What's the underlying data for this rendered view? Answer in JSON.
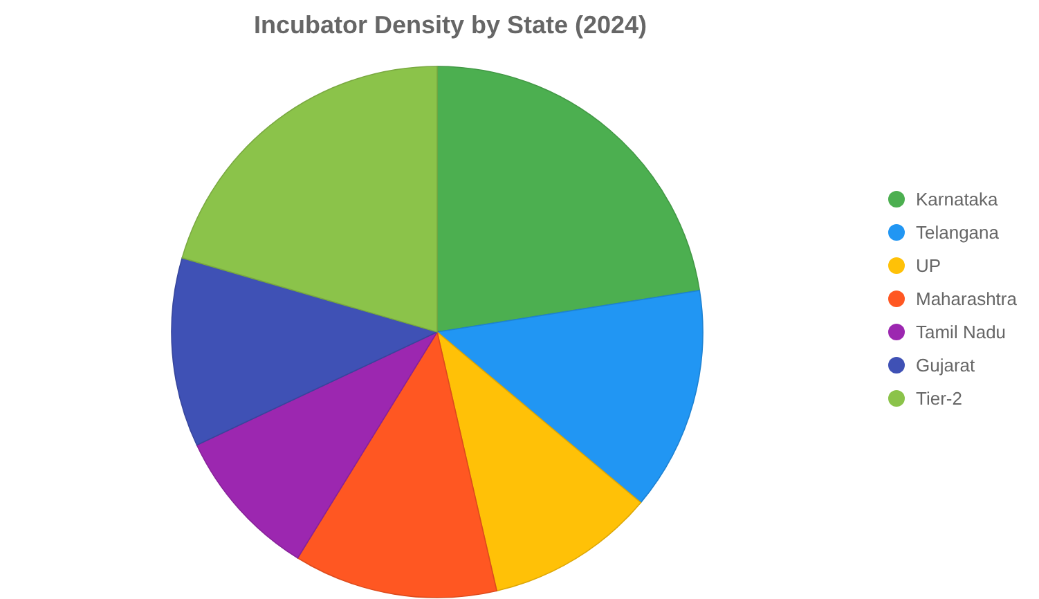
{
  "chart_data": {
    "type": "pie",
    "title": "Incubator Density by State (2024)",
    "categories": [
      "Karnataka",
      "Telangana",
      "UP",
      "Maharashtra",
      "Tamil Nadu",
      "Gujarat",
      "Tier-2"
    ],
    "values": [
      22.5,
      13.6,
      10.3,
      12.4,
      9.2,
      11.5,
      20.5
    ],
    "colors": [
      "#4caf50",
      "#2196f3",
      "#ffc107",
      "#ff5722",
      "#9c27b0",
      "#3f51b5",
      "#8bc34a"
    ],
    "legend": "right"
  }
}
